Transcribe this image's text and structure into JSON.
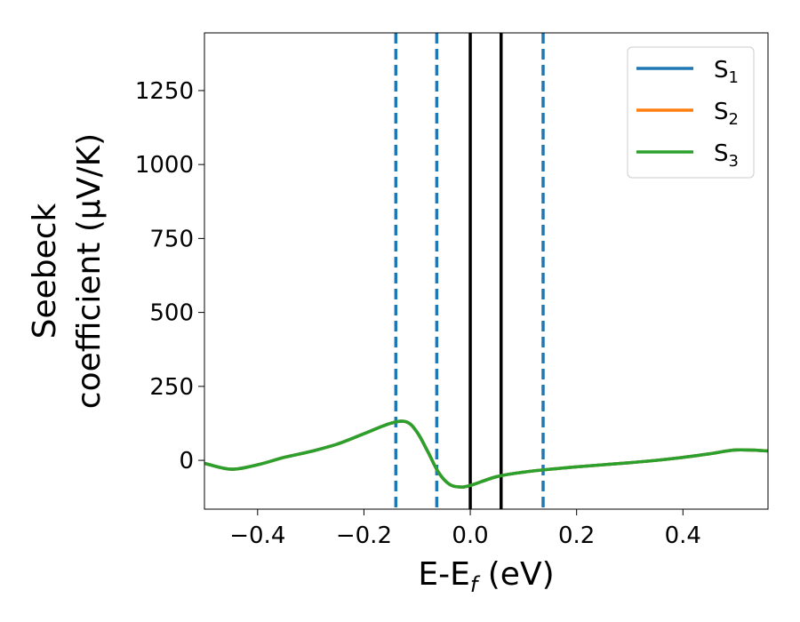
{
  "chart_data": {
    "type": "line",
    "xlabel": "E-E",
    "xlabel_sub": "f",
    "xlabel_unit": " (eV)",
    "ylabel_line1": "Seebeck",
    "ylabel_line2": "coefficient  (μV/K)",
    "xlim": [
      -0.5,
      0.56
    ],
    "ylim": [
      -165,
      1445
    ],
    "xticks": [
      -0.4,
      -0.2,
      0.0,
      0.2,
      0.4
    ],
    "xtick_labels": [
      "−0.4",
      "−0.2",
      "0.0",
      "0.2",
      "0.4"
    ],
    "yticks": [
      0,
      250,
      500,
      750,
      1000,
      1250
    ],
    "ytick_labels": [
      "0",
      "250",
      "500",
      "750",
      "1000",
      "1250"
    ],
    "grid": false,
    "legend_position": "top-right",
    "series": [
      {
        "name": "S",
        "sub": "1",
        "color": "#1f77b4",
        "x": [
          -0.5,
          -0.45,
          -0.4,
          -0.35,
          -0.3,
          -0.25,
          -0.2,
          -0.15,
          -0.12,
          -0.1,
          -0.08,
          -0.06,
          -0.04,
          -0.02,
          0.0,
          0.05,
          0.1,
          0.15,
          0.2,
          0.25,
          0.3,
          0.35,
          0.4,
          0.45,
          0.5,
          0.56
        ],
        "y": [
          -10,
          -30,
          -15,
          10,
          30,
          55,
          90,
          125,
          130,
          95,
          30,
          -40,
          -80,
          -90,
          -85,
          -55,
          -40,
          -30,
          -22,
          -15,
          -8,
          0,
          10,
          22,
          35,
          32
        ]
      },
      {
        "name": "S",
        "sub": "2",
        "color": "#ff7f0e",
        "x": [
          -0.5,
          -0.45,
          -0.4,
          -0.35,
          -0.3,
          -0.25,
          -0.2,
          -0.15,
          -0.12,
          -0.1,
          -0.08,
          -0.06,
          -0.04,
          -0.02,
          0.0,
          0.05,
          0.1,
          0.15,
          0.2,
          0.25,
          0.3,
          0.35,
          0.4,
          0.45,
          0.5,
          0.56
        ],
        "y": [
          -10,
          -30,
          -15,
          10,
          30,
          55,
          90,
          125,
          130,
          95,
          30,
          -40,
          -80,
          -90,
          -85,
          -55,
          -40,
          -30,
          -22,
          -15,
          -8,
          0,
          10,
          22,
          35,
          32
        ]
      },
      {
        "name": "S",
        "sub": "3",
        "color": "#2ca02c",
        "x": [
          -0.5,
          -0.45,
          -0.4,
          -0.35,
          -0.3,
          -0.25,
          -0.2,
          -0.15,
          -0.12,
          -0.1,
          -0.08,
          -0.06,
          -0.04,
          -0.02,
          0.0,
          0.05,
          0.1,
          0.15,
          0.2,
          0.25,
          0.3,
          0.35,
          0.4,
          0.45,
          0.5,
          0.56
        ],
        "y": [
          -10,
          -30,
          -15,
          10,
          30,
          55,
          90,
          125,
          130,
          95,
          30,
          -40,
          -80,
          -90,
          -85,
          -55,
          -40,
          -30,
          -22,
          -15,
          -8,
          0,
          10,
          22,
          35,
          32
        ]
      }
    ],
    "vlines": [
      {
        "x": -0.14,
        "style": "dashed",
        "color": "#1f77b4"
      },
      {
        "x": -0.063,
        "style": "dashed",
        "color": "#1f77b4"
      },
      {
        "x": 0.0,
        "style": "solid",
        "color": "#000000"
      },
      {
        "x": 0.058,
        "style": "solid",
        "color": "#000000"
      },
      {
        "x": 0.137,
        "style": "dashed",
        "color": "#1f77b4"
      }
    ]
  }
}
